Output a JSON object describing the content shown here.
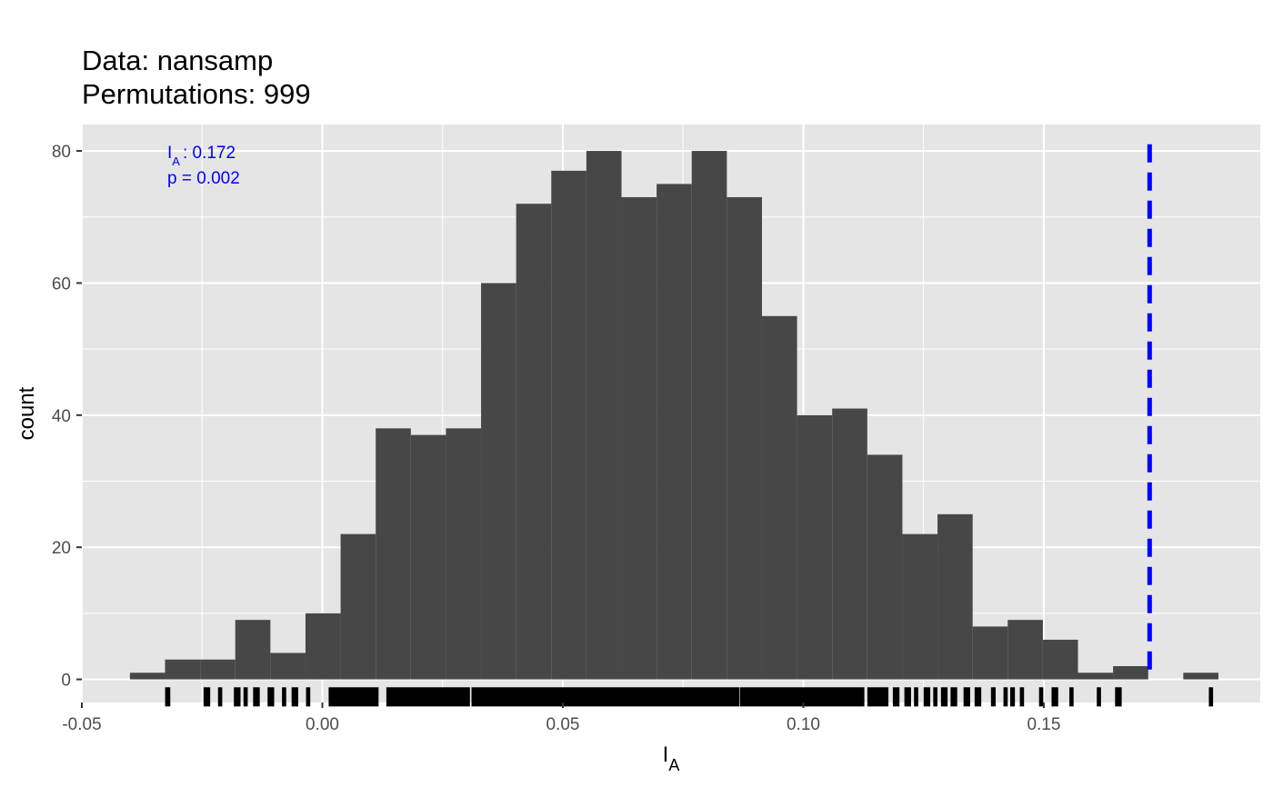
{
  "title_lines": [
    "Data: nansamp",
    "Permutations: 999"
  ],
  "chart_data": {
    "type": "bar",
    "subtype": "histogram",
    "xlabel": {
      "main": "I",
      "sub": "A"
    },
    "ylabel": "count",
    "xlim": [
      -0.05,
      0.195
    ],
    "ylim": [
      -3.5,
      84
    ],
    "x_ticks": [
      -0.05,
      0.0,
      0.05,
      0.1,
      0.15
    ],
    "x_tick_labels": [
      "-0.05",
      "0.00",
      "0.05",
      "0.10",
      "0.15"
    ],
    "y_ticks": [
      0,
      20,
      40,
      60,
      80
    ],
    "y_tick_labels": [
      "0",
      "20",
      "40",
      "60",
      "80"
    ],
    "grid": true,
    "bin_start": -0.04,
    "bin_width": 0.0073,
    "values": [
      1,
      3,
      3,
      9,
      4,
      10,
      22,
      38,
      37,
      38,
      60,
      72,
      77,
      80,
      73,
      75,
      80,
      73,
      55,
      40,
      41,
      34,
      22,
      25,
      8,
      9,
      6,
      1,
      2,
      0,
      1
    ],
    "observed": {
      "value": 0.172,
      "label_main": "I",
      "label_sub": "A",
      "label_rest": ": 0.172",
      "p_text": "p = 0.002"
    },
    "rug_segments": [
      [
        -0.0325,
        -0.0318
      ],
      [
        -0.0245,
        -0.0235
      ],
      [
        -0.0215,
        -0.021
      ],
      [
        -0.0182,
        -0.0172
      ],
      [
        -0.0162,
        -0.0157
      ],
      [
        -0.0142,
        -0.0132
      ],
      [
        -0.0112,
        -0.0102
      ],
      [
        -0.0082,
        -0.0077
      ],
      [
        -0.0062,
        -0.0052
      ],
      [
        -0.0032,
        -0.0027
      ],
      [
        0.0015,
        0.0115
      ],
      [
        0.0135,
        0.0305
      ],
      [
        0.0312,
        0.0865
      ],
      [
        0.087,
        0.1125
      ],
      [
        0.1135,
        0.1175
      ],
      [
        0.1188,
        0.1198
      ],
      [
        0.1212,
        0.1222
      ],
      [
        0.1232,
        0.1237
      ],
      [
        0.1252,
        0.1262
      ],
      [
        0.1272,
        0.1277
      ],
      [
        0.1288,
        0.1298
      ],
      [
        0.1308,
        0.1318
      ],
      [
        0.1335,
        0.1345
      ],
      [
        0.1358,
        0.1368
      ],
      [
        0.1392,
        0.1398
      ],
      [
        0.1418,
        0.1423
      ],
      [
        0.1432,
        0.1438
      ],
      [
        0.1452,
        0.1457
      ],
      [
        0.1492,
        0.1497
      ],
      [
        0.1518,
        0.1528
      ],
      [
        0.1555,
        0.156
      ],
      [
        0.1612,
        0.1617
      ],
      [
        0.165,
        0.166
      ],
      [
        0.1845,
        0.185
      ]
    ],
    "colors": {
      "panel": "#e5e5e5",
      "grid_major": "#ffffff",
      "bar": "#474747",
      "observed": "#0000ff",
      "rug": "#000000",
      "tick_text": "#4d4d4d"
    }
  }
}
